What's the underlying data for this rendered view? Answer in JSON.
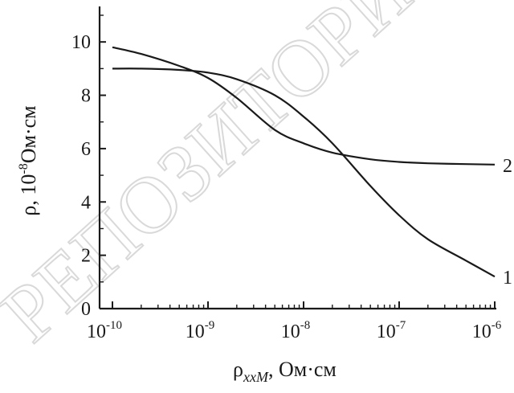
{
  "watermark": "РЕПОЗИТОРИЙ",
  "chart_data": {
    "type": "line",
    "xscale": "log",
    "xlim": [
      1e-10,
      1e-06
    ],
    "ylim": [
      0,
      11
    ],
    "xlabel": {
      "base": "ρ",
      "sub": "xxM",
      "unit": ", Ом·см"
    },
    "ylabel": {
      "prefix": "ρ,  10",
      "exp": "-8",
      "unit": "Ом·см"
    },
    "yticks": [
      {
        "value": 0,
        "label": "0"
      },
      {
        "value": 2,
        "label": "2"
      },
      {
        "value": 4,
        "label": "4"
      },
      {
        "value": 6,
        "label": "6"
      },
      {
        "value": 8,
        "label": "8"
      },
      {
        "value": 10,
        "label": "10"
      }
    ],
    "xticks": [
      {
        "value": 1e-10,
        "base": "10",
        "exp": "-10"
      },
      {
        "value": 1e-09,
        "base": "10",
        "exp": "-9"
      },
      {
        "value": 1e-08,
        "base": "10",
        "exp": "-8"
      },
      {
        "value": 1e-07,
        "base": "10",
        "exp": "-7"
      },
      {
        "value": 1e-06,
        "base": "10",
        "exp": "-6"
      }
    ],
    "series": [
      {
        "name": "1",
        "x": [
          1e-10,
          2e-10,
          5e-10,
          1e-09,
          2e-09,
          5e-09,
          1e-08,
          2e-08,
          5e-08,
          1e-07,
          2e-07,
          5e-07,
          1e-06
        ],
        "y": [
          9.0,
          9.0,
          8.95,
          8.85,
          8.6,
          8.0,
          7.2,
          6.2,
          4.6,
          3.5,
          2.6,
          1.8,
          1.2
        ]
      },
      {
        "name": "2",
        "x": [
          1e-10,
          2e-10,
          5e-10,
          1e-09,
          2e-09,
          5e-09,
          1e-08,
          2e-08,
          5e-08,
          1e-07,
          2e-07,
          5e-07,
          1e-06
        ],
        "y": [
          9.8,
          9.55,
          9.1,
          8.65,
          7.9,
          6.7,
          6.2,
          5.85,
          5.6,
          5.5,
          5.45,
          5.42,
          5.4
        ]
      }
    ]
  }
}
